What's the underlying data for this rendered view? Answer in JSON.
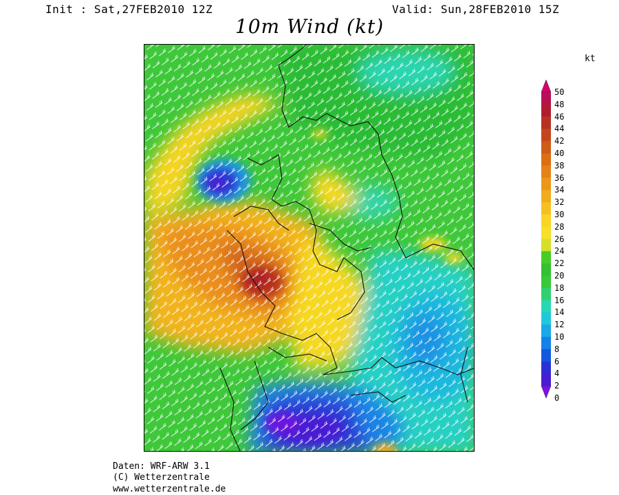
{
  "header": {
    "init": "Init : Sat,27FEB2010 12Z",
    "valid": "Valid: Sun,28FEB2010 15Z"
  },
  "title": "10m Wind (kt)",
  "legend": {
    "unit": "kt",
    "ticks": [
      "50",
      "48",
      "46",
      "44",
      "42",
      "40",
      "38",
      "36",
      "34",
      "32",
      "30",
      "28",
      "26",
      "24",
      "22",
      "20",
      "18",
      "16",
      "14",
      "12",
      "10",
      "8",
      "6",
      "4",
      "2",
      "0"
    ],
    "colors": [
      "#d4006e",
      "#b80f55",
      "#b01c2c",
      "#b83222",
      "#c4461e",
      "#d05a18",
      "#dc6e14",
      "#e48216",
      "#ec961a",
      "#f2aa1e",
      "#f6c020",
      "#fad426",
      "#f6e028",
      "#d6e024",
      "#48cc28",
      "#34c030",
      "#38c838",
      "#30d070",
      "#28d8b4",
      "#20c8dc",
      "#1aa8e6",
      "#1482e8",
      "#1458e0",
      "#2a30d6",
      "#4a1cd4",
      "#8010e6"
    ]
  },
  "map": {
    "wind_regions_kt": [
      {
        "area": "north-sea-low-center",
        "speed": 4
      },
      {
        "area": "northwest-band",
        "speed": 28
      },
      {
        "area": "central-maximum",
        "speed": 42
      },
      {
        "area": "eastern-plain",
        "speed": 20
      },
      {
        "area": "southeast",
        "speed": 13
      },
      {
        "area": "alps",
        "speed": 4
      }
    ]
  },
  "credits": {
    "line1": "Daten: WRF-ARW 3.1",
    "line2": "(C) Wetterzentrale",
    "line3": "www.wetterzentrale.de"
  }
}
